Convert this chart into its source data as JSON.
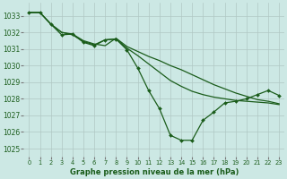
{
  "title": "Graphe pression niveau de la mer (hPa)",
  "bg_color": "#cce8e4",
  "grid_color": "#b0c8c4",
  "line_color": "#1a5c1a",
  "xlim": [
    -0.5,
    23.5
  ],
  "ylim": [
    1024.5,
    1033.8
  ],
  "yticks": [
    1025,
    1026,
    1027,
    1028,
    1029,
    1030,
    1031,
    1032,
    1033
  ],
  "xticks": [
    0,
    1,
    2,
    3,
    4,
    5,
    6,
    7,
    8,
    9,
    10,
    11,
    12,
    13,
    14,
    15,
    16,
    17,
    18,
    19,
    20,
    21,
    22,
    23
  ],
  "series": [
    {
      "x": [
        0,
        1,
        2,
        3,
        4,
        5,
        6,
        7,
        8,
        9,
        10,
        11,
        12,
        13,
        14,
        15,
        16,
        17,
        18,
        19,
        20,
        21,
        22,
        23
      ],
      "y": [
        1033.2,
        1033.2,
        1032.5,
        1032.0,
        1031.9,
        1031.5,
        1031.3,
        1031.2,
        1031.65,
        1031.15,
        1030.85,
        1030.55,
        1030.3,
        1030.0,
        1029.75,
        1029.45,
        1029.15,
        1028.85,
        1028.6,
        1028.35,
        1028.15,
        1027.95,
        1027.85,
        1027.7
      ],
      "has_markers": false,
      "linewidth": 0.9
    },
    {
      "x": [
        0,
        1,
        2,
        3,
        4,
        5,
        6,
        7,
        8,
        9,
        10,
        11,
        12,
        13,
        14,
        15,
        16,
        17,
        18,
        19,
        20,
        21,
        22,
        23
      ],
      "y": [
        1033.2,
        1033.2,
        1032.5,
        1032.0,
        1031.85,
        1031.45,
        1031.25,
        1031.55,
        1031.6,
        1031.05,
        1030.6,
        1030.1,
        1029.6,
        1029.1,
        1028.75,
        1028.45,
        1028.25,
        1028.1,
        1028.0,
        1027.9,
        1027.85,
        1027.8,
        1027.75,
        1027.65
      ],
      "has_markers": false,
      "linewidth": 0.9
    },
    {
      "x": [
        0,
        1,
        2,
        3,
        4,
        5,
        6,
        7,
        8,
        9,
        10,
        11,
        12,
        13,
        14,
        15,
        16,
        17,
        18,
        19,
        20,
        21,
        22,
        23
      ],
      "y": [
        1033.2,
        1033.2,
        1032.5,
        1031.85,
        1031.9,
        1031.4,
        1031.2,
        1031.55,
        1031.6,
        1030.95,
        1029.85,
        1028.5,
        1027.4,
        1025.8,
        1025.5,
        1025.5,
        1026.7,
        1027.2,
        1027.75,
        1027.85,
        1028.0,
        1028.25,
        1028.5,
        1028.2
      ],
      "has_markers": true,
      "linewidth": 0.9
    }
  ]
}
